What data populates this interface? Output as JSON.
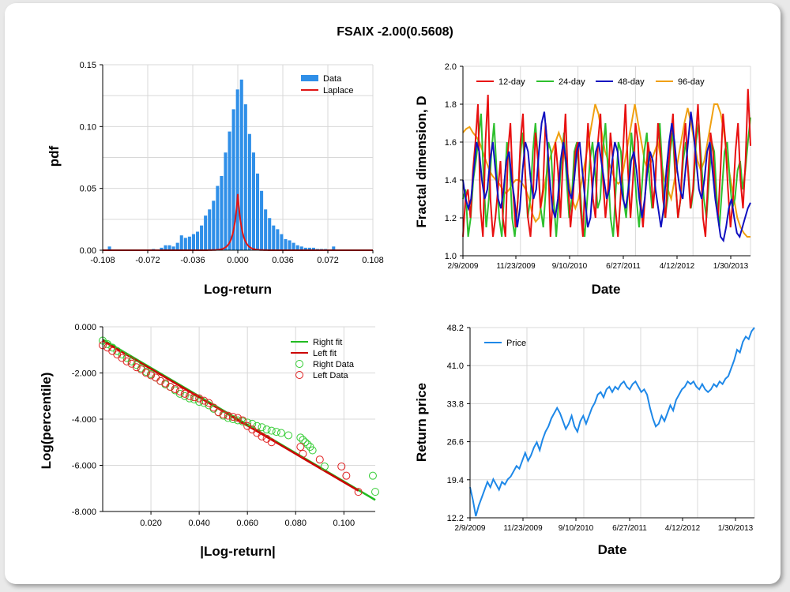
{
  "title": "FSAIX -2.00(0.5608)",
  "colors": {
    "bars": "#2f8fe8",
    "laplace": "#e01515",
    "d12": "#e81010",
    "d24": "#2ec02e",
    "d48": "#1010c0",
    "d96": "#f0a010",
    "rightFit": "#22bb22",
    "leftFit": "#cc0000",
    "rightData": "#33cc33",
    "leftData": "#e02020",
    "price": "#1e88e8"
  },
  "chart_data": [
    {
      "type": "bar",
      "xlabel": "Log-return",
      "ylabel": "pdf",
      "xlim": [
        -0.108,
        0.108
      ],
      "ylim": [
        0,
        0.15
      ],
      "xticks": [
        "-0.108",
        "-0.072",
        "-0.036",
        "0.000",
        "0.036",
        "0.072",
        "0.108"
      ],
      "yticks": [
        "0.00",
        "0.05",
        "0.10",
        "0.15"
      ],
      "legend": [
        "Data",
        "Laplace"
      ],
      "bin_centers": [
        -0.1058,
        -0.1026,
        -0.0994,
        -0.0962,
        -0.093,
        -0.0898,
        -0.0866,
        -0.0834,
        -0.0802,
        -0.077,
        -0.0738,
        -0.0706,
        -0.0674,
        -0.0642,
        -0.061,
        -0.0578,
        -0.0546,
        -0.0514,
        -0.0482,
        -0.045,
        -0.0418,
        -0.0386,
        -0.0354,
        -0.0322,
        -0.029,
        -0.0258,
        -0.0226,
        -0.0194,
        -0.0162,
        -0.013,
        -0.0098,
        -0.0066,
        -0.0034,
        -0.0002,
        0.003,
        0.0062,
        0.0094,
        0.0126,
        0.0158,
        0.019,
        0.0222,
        0.0254,
        0.0286,
        0.0318,
        0.035,
        0.0382,
        0.0414,
        0.0446,
        0.0478,
        0.051,
        0.0542,
        0.0574,
        0.0606,
        0.0638,
        0.067,
        0.0702,
        0.0734,
        0.0766,
        0.0798,
        0.083,
        0.0862,
        0.0894,
        0.0926,
        0.0958,
        0.099,
        0.1022,
        0.1054
      ],
      "values": [
        0,
        0.003,
        0,
        0,
        0,
        0,
        0,
        0,
        0,
        0,
        0,
        0,
        0.001,
        0,
        0.002,
        0.004,
        0.004,
        0.003,
        0.006,
        0.012,
        0.01,
        0.011,
        0.013,
        0.015,
        0.02,
        0.028,
        0.033,
        0.04,
        0.052,
        0.06,
        0.079,
        0.096,
        0.114,
        0.13,
        0.138,
        0.118,
        0.094,
        0.079,
        0.062,
        0.048,
        0.033,
        0.026,
        0.02,
        0.017,
        0.013,
        0.009,
        0.008,
        0.006,
        0.004,
        0.003,
        0.002,
        0.002,
        0.002,
        0.001,
        0.001,
        0.001,
        0,
        0.003,
        0,
        0,
        0,
        0,
        0,
        0,
        0,
        0,
        0
      ],
      "laplace": {
        "mu": 0.0,
        "b": 0.0033,
        "scale": 0.0003
      }
    },
    {
      "type": "line",
      "xlabel": "Date",
      "ylabel": "Fractal dimension, D",
      "ylim": [
        1.0,
        2.0
      ],
      "xticks": [
        "2/9/2009",
        "11/23/2009",
        "9/10/2010",
        "6/27/2011",
        "4/12/2012",
        "1/30/2013"
      ],
      "yticks": [
        "1.0",
        "1.2",
        "1.4",
        "1.6",
        "1.8",
        "2.0"
      ],
      "legend": [
        "12-day",
        "24-day",
        "48-day",
        "96-day"
      ],
      "series": [
        {
          "name": "12-day",
          "values": [
            1.1,
            1.3,
            1.35,
            1.2,
            1.45,
            1.6,
            1.8,
            1.25,
            1.1,
            1.6,
            1.85,
            1.3,
            1.1,
            1.2,
            1.35,
            1.5,
            1.2,
            1.1,
            1.55,
            1.7,
            1.35,
            1.15,
            1.3,
            1.6,
            1.75,
            1.4,
            1.2,
            1.1,
            1.3,
            1.65,
            1.5,
            1.25,
            1.35,
            1.7,
            1.55,
            1.1,
            1.3,
            1.6,
            1.45,
            1.2,
            1.5,
            1.75,
            1.4,
            1.15,
            1.3,
            1.55,
            1.6,
            1.25,
            1.1,
            1.45,
            1.7,
            1.5,
            1.3,
            1.2,
            1.6,
            1.75,
            1.4,
            1.2,
            1.35,
            1.65,
            1.5,
            1.25,
            1.1,
            1.3,
            1.55,
            1.8,
            1.45,
            1.2,
            1.4,
            1.7,
            1.6,
            1.3,
            1.15,
            1.35,
            1.6,
            1.5,
            1.25,
            1.4,
            1.7,
            1.55,
            1.3,
            1.2,
            1.45,
            1.6,
            1.75,
            1.4,
            1.2,
            1.3,
            1.55,
            1.7,
            1.45,
            1.25,
            1.35,
            1.6,
            1.8,
            1.5,
            1.2,
            1.1,
            1.4,
            1.65,
            1.55,
            1.3,
            1.2,
            1.45,
            1.75,
            1.6,
            1.35,
            1.15,
            1.3,
            1.55,
            1.7,
            1.4,
            1.25,
            1.5,
            1.88,
            1.58
          ]
        },
        {
          "name": "24-day",
          "values": [
            1.3,
            1.35,
            1.1,
            1.2,
            1.4,
            1.5,
            1.62,
            1.75,
            1.4,
            1.15,
            1.3,
            1.55,
            1.7,
            1.45,
            1.2,
            1.1,
            1.35,
            1.6,
            1.5,
            1.2,
            1.1,
            1.25,
            1.5,
            1.65,
            1.45,
            1.2,
            1.3,
            1.55,
            1.7,
            1.5,
            1.25,
            1.15,
            1.35,
            1.6,
            1.55,
            1.3,
            1.1,
            1.3,
            1.5,
            1.65,
            1.4,
            1.2,
            1.3,
            1.55,
            1.6,
            1.4,
            1.2,
            1.1,
            1.3,
            1.5,
            1.6,
            1.45,
            1.25,
            1.3,
            1.55,
            1.7,
            1.45,
            1.2,
            1.1,
            1.35,
            1.6,
            1.55,
            1.3,
            1.2,
            1.4,
            1.65,
            1.5,
            1.3,
            1.15,
            1.35,
            1.55,
            1.65,
            1.4,
            1.25,
            1.35,
            1.6,
            1.7,
            1.45,
            1.2,
            1.3,
            1.55,
            1.65,
            1.4,
            1.2,
            1.3,
            1.5,
            1.6,
            1.45,
            1.25,
            1.35,
            1.6,
            1.7,
            1.5,
            1.3,
            1.2,
            1.4,
            1.6,
            1.55,
            1.3,
            1.15,
            1.35,
            1.55,
            1.6,
            1.4,
            1.25,
            1.3,
            1.45,
            1.5,
            1.35,
            1.45,
            1.6,
            1.73
          ]
        },
        {
          "name": "48-day",
          "values": [
            1.4,
            1.3,
            1.25,
            1.3,
            1.45,
            1.6,
            1.55,
            1.4,
            1.3,
            1.35,
            1.5,
            1.6,
            1.45,
            1.3,
            1.25,
            1.35,
            1.5,
            1.55,
            1.4,
            1.3,
            1.15,
            1.25,
            1.45,
            1.6,
            1.55,
            1.4,
            1.3,
            1.35,
            1.55,
            1.7,
            1.76,
            1.6,
            1.4,
            1.25,
            1.2,
            1.3,
            1.5,
            1.6,
            1.5,
            1.35,
            1.3,
            1.4,
            1.55,
            1.6,
            1.45,
            1.3,
            1.15,
            1.2,
            1.4,
            1.55,
            1.6,
            1.5,
            1.4,
            1.3,
            1.35,
            1.5,
            1.6,
            1.55,
            1.4,
            1.3,
            1.25,
            1.35,
            1.5,
            1.55,
            1.45,
            1.3,
            1.2,
            1.3,
            1.45,
            1.55,
            1.5,
            1.35,
            1.25,
            1.15,
            1.25,
            1.45,
            1.6,
            1.7,
            1.6,
            1.45,
            1.35,
            1.3,
            1.45,
            1.6,
            1.76,
            1.65,
            1.5,
            1.35,
            1.3,
            1.4,
            1.55,
            1.6,
            1.45,
            1.3,
            1.2,
            1.1,
            1.08,
            1.15,
            1.25,
            1.3,
            1.2,
            1.12,
            1.1,
            1.15,
            1.2,
            1.25,
            1.28
          ]
        },
        {
          "name": "96-day",
          "values": [
            1.65,
            1.67,
            1.68,
            1.65,
            1.63,
            1.6,
            1.55,
            1.5,
            1.45,
            1.42,
            1.4,
            1.38,
            1.35,
            1.33,
            1.35,
            1.38,
            1.4,
            1.4,
            1.38,
            1.35,
            1.3,
            1.22,
            1.18,
            1.2,
            1.3,
            1.4,
            1.5,
            1.55,
            1.6,
            1.65,
            1.6,
            1.5,
            1.4,
            1.3,
            1.25,
            1.3,
            1.4,
            1.5,
            1.6,
            1.7,
            1.8,
            1.75,
            1.65,
            1.55,
            1.5,
            1.45,
            1.4,
            1.38,
            1.4,
            1.5,
            1.6,
            1.7,
            1.8,
            1.7,
            1.6,
            1.5,
            1.45,
            1.5,
            1.55,
            1.6,
            1.5,
            1.4,
            1.35,
            1.3,
            1.4,
            1.5,
            1.6,
            1.7,
            1.78,
            1.7,
            1.6,
            1.5,
            1.45,
            1.5,
            1.6,
            1.7,
            1.8,
            1.8,
            1.75,
            1.65,
            1.5,
            1.4,
            1.3,
            1.2,
            1.15,
            1.12,
            1.1,
            1.1
          ]
        }
      ]
    },
    {
      "type": "scatter",
      "xlabel": "|Log-return|",
      "ylabel": "Log(percentile)",
      "xlim": [
        0.0,
        0.113
      ],
      "ylim": [
        -8.0,
        0.0
      ],
      "xticks": [
        "0.020",
        "0.040",
        "0.060",
        "0.080",
        "0.100"
      ],
      "yticks": [
        "0.000",
        "-2.000",
        "-4.000",
        "-6.000",
        "-8.000"
      ],
      "legend": [
        "Right fit",
        "Left fit",
        "Right Data",
        "Left Data"
      ],
      "series": [
        {
          "name": "Right fit",
          "x": [
            0.0,
            0.113
          ],
          "y": [
            -0.55,
            -7.5
          ]
        },
        {
          "name": "Left fit",
          "x": [
            0.0,
            0.106
          ],
          "y": [
            -0.6,
            -7.1
          ]
        },
        {
          "name": "Right Data",
          "x": [
            0.0,
            0.002,
            0.004,
            0.006,
            0.008,
            0.01,
            0.012,
            0.014,
            0.016,
            0.018,
            0.02,
            0.022,
            0.024,
            0.026,
            0.028,
            0.03,
            0.032,
            0.034,
            0.036,
            0.038,
            0.04,
            0.042,
            0.044,
            0.046,
            0.048,
            0.05,
            0.052,
            0.054,
            0.056,
            0.058,
            0.06,
            0.062,
            0.064,
            0.066,
            0.068,
            0.07,
            0.072,
            0.074,
            0.077,
            0.082,
            0.083,
            0.084,
            0.085,
            0.086,
            0.087,
            0.092,
            0.112,
            0.113
          ],
          "y": [
            -0.6,
            -0.75,
            -0.9,
            -1.05,
            -1.2,
            -1.35,
            -1.5,
            -1.65,
            -1.8,
            -1.95,
            -2.05,
            -2.2,
            -2.35,
            -2.5,
            -2.6,
            -2.75,
            -2.9,
            -3.0,
            -3.1,
            -3.15,
            -3.25,
            -3.3,
            -3.4,
            -3.55,
            -3.7,
            -3.85,
            -3.95,
            -4.0,
            -4.05,
            -4.1,
            -4.15,
            -4.2,
            -4.3,
            -4.35,
            -4.45,
            -4.5,
            -4.55,
            -4.6,
            -4.7,
            -4.8,
            -4.9,
            -5.0,
            -5.1,
            -5.2,
            -5.35,
            -6.05,
            -6.45,
            -7.15
          ]
        },
        {
          "name": "Left Data",
          "x": [
            0.0,
            0.002,
            0.004,
            0.006,
            0.008,
            0.01,
            0.012,
            0.014,
            0.016,
            0.018,
            0.02,
            0.022,
            0.024,
            0.026,
            0.028,
            0.03,
            0.032,
            0.034,
            0.036,
            0.038,
            0.04,
            0.042,
            0.044,
            0.046,
            0.048,
            0.05,
            0.052,
            0.054,
            0.056,
            0.058,
            0.06,
            0.062,
            0.064,
            0.066,
            0.068,
            0.07,
            0.082,
            0.083,
            0.09,
            0.099,
            0.101,
            0.106
          ],
          "y": [
            -0.8,
            -0.9,
            -1.05,
            -1.2,
            -1.35,
            -1.5,
            -1.6,
            -1.75,
            -1.85,
            -2.0,
            -2.1,
            -2.2,
            -2.35,
            -2.45,
            -2.6,
            -2.7,
            -2.8,
            -2.9,
            -3.0,
            -3.05,
            -3.1,
            -3.2,
            -3.3,
            -3.5,
            -3.7,
            -3.8,
            -3.85,
            -3.9,
            -3.95,
            -4.05,
            -4.3,
            -4.45,
            -4.6,
            -4.75,
            -4.85,
            -5.0,
            -5.2,
            -5.5,
            -5.75,
            -6.05,
            -6.45,
            -7.15
          ]
        }
      ]
    },
    {
      "type": "line",
      "xlabel": "Date",
      "ylabel": "Return price",
      "ylim": [
        12.2,
        48.2
      ],
      "xticks": [
        "2/9/2009",
        "11/23/2009",
        "9/10/2010",
        "6/27/2011",
        "4/12/2012",
        "1/30/2013"
      ],
      "yticks": [
        "12.2",
        "19.4",
        "26.6",
        "33.8",
        "41.0",
        "48.2"
      ],
      "legend": [
        "Price"
      ],
      "series": [
        {
          "name": "Price",
          "values": [
            18.0,
            15.5,
            12.5,
            14.5,
            16.0,
            17.5,
            19.0,
            18.0,
            19.5,
            18.5,
            17.5,
            19.0,
            18.5,
            19.5,
            20.0,
            21.0,
            22.0,
            21.5,
            23.0,
            24.5,
            23.0,
            24.0,
            25.5,
            26.5,
            25.0,
            27.0,
            28.5,
            29.5,
            31.0,
            32.0,
            33.0,
            32.0,
            30.5,
            29.0,
            30.0,
            31.5,
            29.5,
            28.5,
            30.5,
            31.5,
            30.0,
            31.5,
            33.0,
            34.0,
            35.5,
            36.0,
            35.0,
            36.5,
            37.0,
            36.0,
            37.0,
            36.5,
            37.5,
            38.0,
            37.0,
            36.5,
            37.5,
            38.0,
            37.0,
            36.0,
            36.5,
            35.5,
            33.0,
            31.0,
            29.5,
            30.0,
            31.5,
            30.5,
            32.0,
            33.5,
            32.5,
            34.5,
            35.5,
            36.5,
            37.0,
            38.0,
            37.5,
            38.0,
            37.0,
            36.5,
            37.5,
            36.5,
            36.0,
            36.5,
            37.5,
            37.0,
            38.0,
            37.5,
            38.5,
            39.0,
            40.5,
            42.0,
            44.0,
            43.5,
            45.5,
            46.5,
            46.0,
            47.5,
            48.2
          ]
        }
      ]
    }
  ]
}
